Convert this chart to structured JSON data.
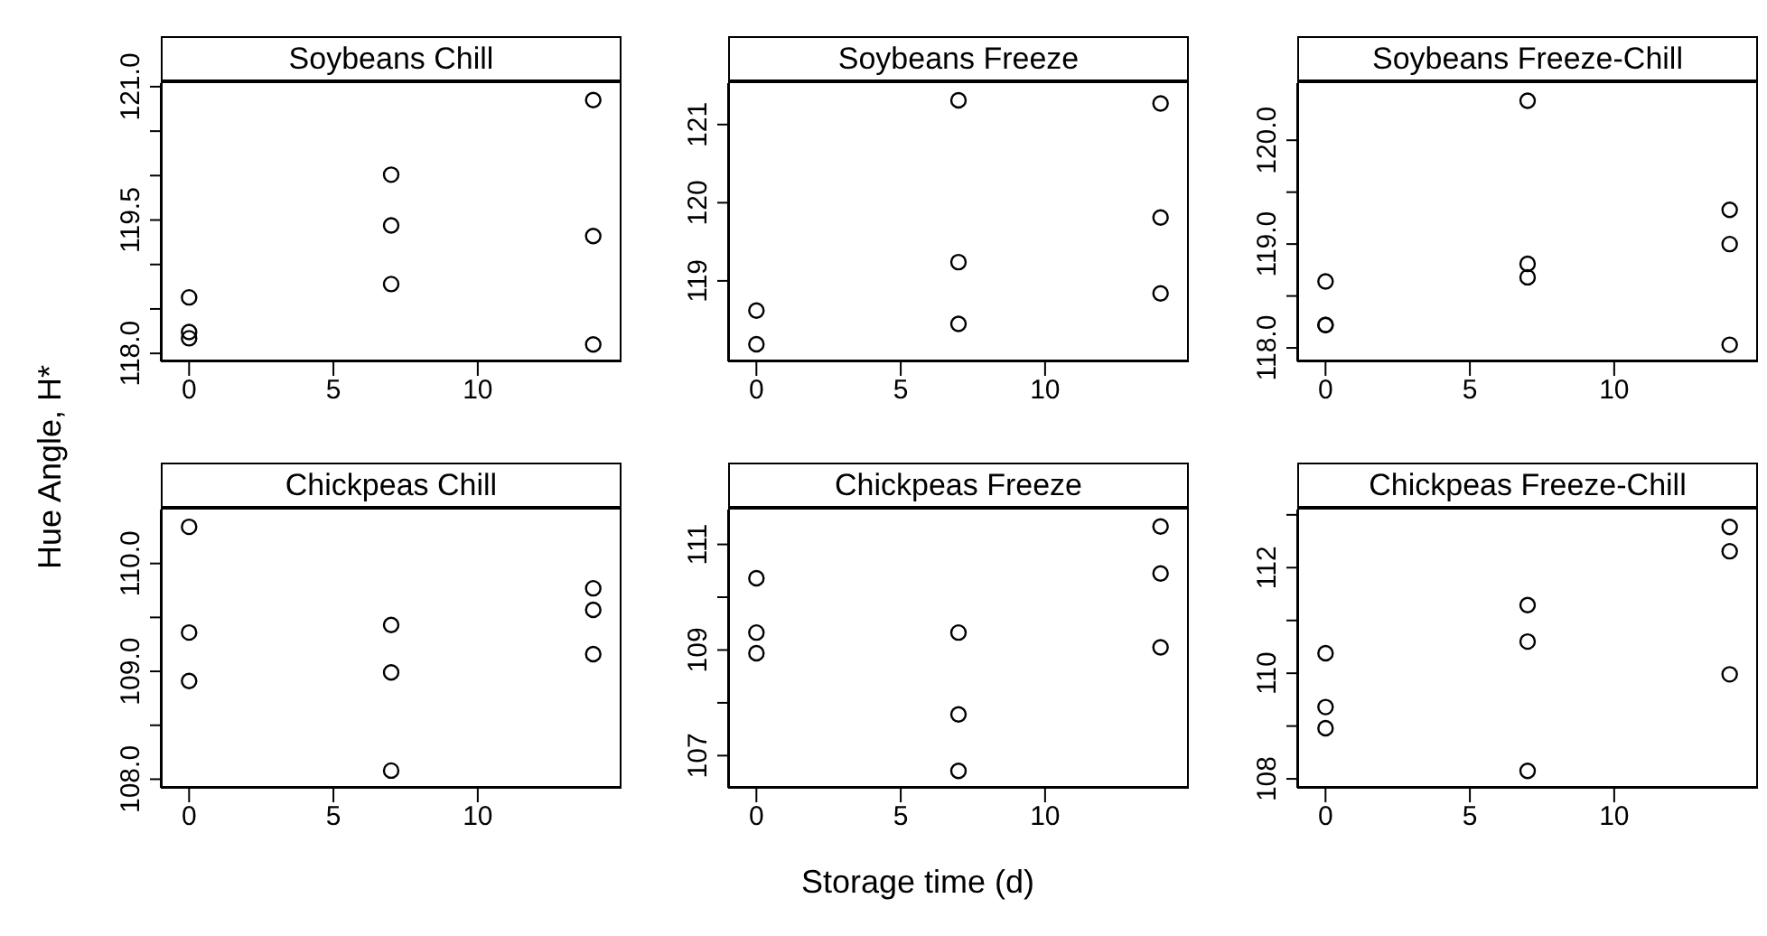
{
  "chart_data": [
    {
      "type": "scatter",
      "title": "Soybeans Chill",
      "ylabel": "Hue Angle, H*",
      "marker": "circle",
      "color": "#000000",
      "x": [
        0,
        0,
        0,
        7,
        7,
        7,
        14,
        14,
        14
      ],
      "values": [
        118.63,
        118.24,
        118.17,
        120.01,
        119.44,
        118.78,
        120.85,
        119.32,
        118.1
      ],
      "xlim": [
        -0.98,
        14.98
      ],
      "xticks": [
        0,
        5,
        10
      ],
      "ylim": [
        117.91,
        121.04
      ],
      "yticks": [
        {
          "value": 118,
          "label": "118.0"
        },
        {
          "value": 118.5,
          "label": null
        },
        {
          "value": 119,
          "label": null
        },
        {
          "value": 119.5,
          "label": "119.5"
        },
        {
          "value": 120,
          "label": null
        },
        {
          "value": 120.5,
          "label": null
        },
        {
          "value": 121,
          "label": "121.0"
        }
      ]
    },
    {
      "type": "scatter",
      "title": "Soybeans Freeze",
      "marker": "circle",
      "color": "#000000",
      "x": [
        0,
        0,
        7,
        7,
        7,
        14,
        14,
        14
      ],
      "values": [
        118.62,
        118.19,
        121.31,
        119.24,
        118.45,
        121.27,
        119.81,
        118.84
      ],
      "xlim": [
        -0.98,
        14.98
      ],
      "xticks": [
        0,
        5,
        10
      ],
      "ylim": [
        117.97,
        121.53
      ],
      "yticks": [
        119,
        120,
        121
      ]
    },
    {
      "type": "scatter",
      "title": "Soybeans Freeze-Chill",
      "marker": "circle",
      "color": "#000000",
      "x": [
        0,
        0,
        0,
        7,
        7,
        7,
        14,
        14,
        14
      ],
      "values": [
        118.64,
        118.22,
        118.22,
        118.81,
        118.68,
        120.38,
        119.33,
        119.0,
        118.03
      ],
      "xlim": [
        -0.98,
        14.98
      ],
      "xticks": [
        0,
        5,
        10
      ],
      "ylim": [
        117.87,
        120.55
      ],
      "yticks": [
        {
          "value": 118,
          "label": "118.0"
        },
        {
          "value": 118.5,
          "label": null
        },
        {
          "value": 119,
          "label": "119.0"
        },
        {
          "value": 119.5,
          "label": null
        },
        {
          "value": 120,
          "label": "120.0"
        }
      ]
    },
    {
      "type": "scatter",
      "title": "Chickpeas Chill",
      "marker": "circle",
      "color": "#000000",
      "x": [
        0,
        0,
        0,
        7,
        7,
        7,
        14,
        14,
        14
      ],
      "values": [
        110.34,
        109.36,
        108.91,
        109.43,
        108.99,
        108.08,
        109.77,
        109.57,
        109.16
      ],
      "xlim": [
        -0.98,
        14.98
      ],
      "xticks": [
        0,
        5,
        10
      ],
      "ylim": [
        107.92,
        110.5
      ],
      "yticks": [
        {
          "value": 108,
          "label": "108.0"
        },
        {
          "value": 108.5,
          "label": null
        },
        {
          "value": 109,
          "label": "109.0"
        },
        {
          "value": 109.5,
          "label": null
        },
        {
          "value": 110,
          "label": "110.0"
        }
      ]
    },
    {
      "type": "scatter",
      "title": "Chickpeas Freeze",
      "xlabel": "Storage time (d)",
      "marker": "circle",
      "color": "#000000",
      "x": [
        0,
        0,
        0,
        7,
        7,
        7,
        14,
        14,
        14
      ],
      "values": [
        110.36,
        109.33,
        108.94,
        109.33,
        107.78,
        106.71,
        111.34,
        110.45,
        109.05
      ],
      "xlim": [
        -0.98,
        14.98
      ],
      "xticks": [
        0,
        5,
        10
      ],
      "ylim": [
        106.39,
        111.66
      ],
      "yticks": [
        107,
        {
          "value": 108,
          "label": null
        },
        109,
        {
          "value": 110,
          "label": null
        },
        111
      ]
    },
    {
      "type": "scatter",
      "title": "Chickpeas Freeze-Chill",
      "marker": "circle",
      "color": "#000000",
      "x": [
        0,
        0,
        0,
        7,
        7,
        7,
        14,
        14,
        14
      ],
      "values": [
        110.38,
        109.36,
        108.96,
        111.29,
        110.6,
        108.15,
        112.77,
        112.31,
        109.98
      ],
      "xlim": [
        -0.98,
        14.98
      ],
      "xticks": [
        0,
        5,
        10
      ],
      "ylim": [
        107.83,
        113.1
      ],
      "yticks": [
        108,
        {
          "value": 109,
          "label": null
        },
        110,
        {
          "value": 111,
          "label": null
        },
        112,
        {
          "value": 113,
          "label": null
        }
      ]
    }
  ]
}
